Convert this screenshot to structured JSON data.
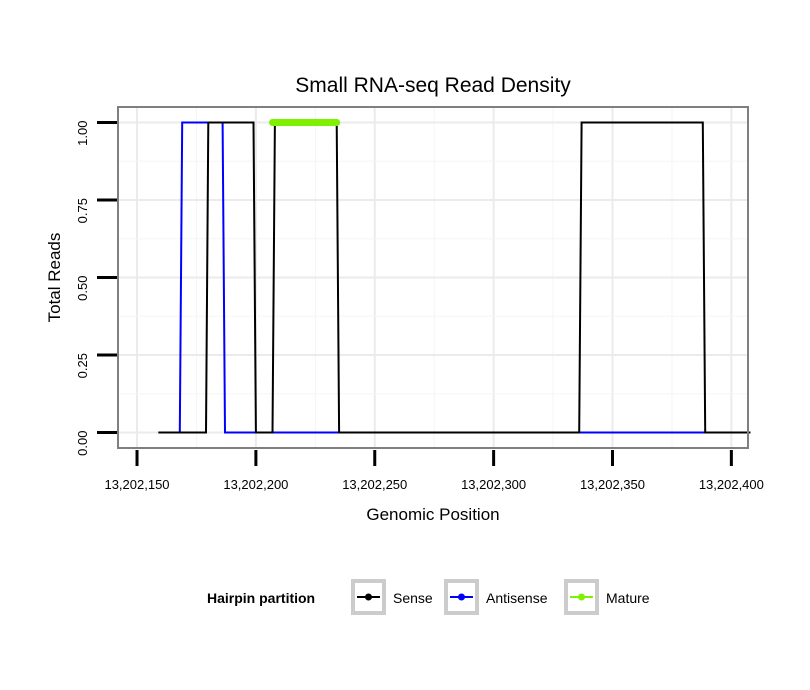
{
  "chart_data": {
    "type": "line",
    "title": "Small RNA-seq Read Density",
    "xlabel": "Genomic Position",
    "ylabel": "Total Reads",
    "xlim": [
      13202142,
      13202407
    ],
    "ylim": [
      -0.05,
      1.05
    ],
    "x_ticks": [
      13202150,
      13202200,
      13202250,
      13202300,
      13202350,
      13202400
    ],
    "x_tick_labels": [
      "13,202,150",
      "13,202,200",
      "13,202,250",
      "13,202,300",
      "13,202,350",
      "13,202,400"
    ],
    "y_ticks": [
      0,
      0.25,
      0.5,
      0.75,
      1.0
    ],
    "y_tick_labels": [
      "0.00",
      "0.25",
      "0.50",
      "0.75",
      "1.00"
    ],
    "grid": true,
    "legend_position": "bottom",
    "legend_title": "Hairpin partition",
    "series": [
      {
        "name": "Sense",
        "color": "#000000",
        "x": [
          13202159,
          13202179,
          13202180,
          13202199,
          13202200,
          13202207,
          13202208,
          13202234,
          13202235,
          13202336,
          13202337,
          13202388,
          13202389,
          13202408
        ],
        "y": [
          0,
          0,
          1,
          1,
          0,
          0,
          1,
          1,
          0,
          0,
          1,
          1,
          0,
          0
        ]
      },
      {
        "name": "Antisense",
        "color": "#0000ff",
        "x": [
          13202159,
          13202168,
          13202169,
          13202186,
          13202187,
          13202234,
          13202235,
          13202388,
          13202389,
          13202408
        ],
        "y": [
          0,
          0,
          1,
          1,
          0,
          0,
          0,
          0,
          0,
          0
        ]
      },
      {
        "name": "Mature",
        "color": "#7ff000",
        "x": [
          13202207,
          13202234
        ],
        "y": [
          1,
          1
        ]
      }
    ]
  }
}
